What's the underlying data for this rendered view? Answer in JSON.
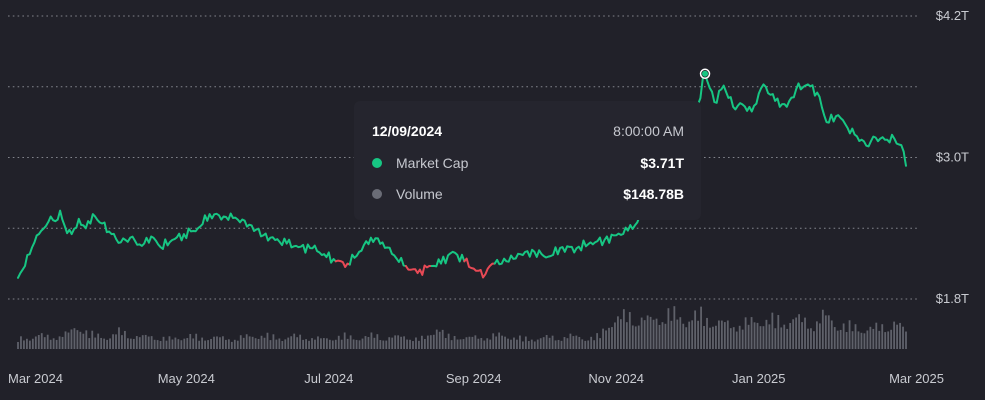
{
  "chart_data": {
    "type": "line",
    "x": [
      "2024-02-19",
      "2024-02-22",
      "2024-02-24",
      "2024-02-26",
      "2024-02-29",
      "2024-03-02",
      "2024-03-04",
      "2024-03-06",
      "2024-03-08",
      "2024-03-10",
      "2024-03-13",
      "2024-03-16",
      "2024-03-19",
      "2024-03-22",
      "2024-03-26",
      "2024-03-30",
      "2024-04-03",
      "2024-04-07",
      "2024-04-12",
      "2024-04-16",
      "2024-04-20",
      "2024-04-25",
      "2024-04-30",
      "2024-05-06",
      "2024-05-11",
      "2024-05-17",
      "2024-05-22",
      "2024-05-28",
      "2024-06-03",
      "2024-06-08",
      "2024-06-13",
      "2024-06-18",
      "2024-06-24",
      "2024-06-29",
      "2024-07-04",
      "2024-07-09",
      "2024-07-14",
      "2024-07-19",
      "2024-07-24",
      "2024-07-29",
      "2024-08-03",
      "2024-08-08",
      "2024-08-13",
      "2024-08-18",
      "2024-08-23",
      "2024-08-28",
      "2024-09-02",
      "2024-09-06",
      "2024-09-09",
      "2024-09-15",
      "2024-09-21",
      "2024-09-27",
      "2024-10-03",
      "2024-10-09",
      "2024-10-15",
      "2024-10-21",
      "2024-10-27",
      "2024-11-01",
      "2024-11-06",
      "2024-11-10",
      "2024-11-16",
      "2024-11-21",
      "2024-11-26",
      "2024-12-01",
      "2024-12-06",
      "2024-12-09",
      "2024-12-13",
      "2024-12-17",
      "2024-12-21",
      "2024-12-25",
      "2024-12-29",
      "2025-01-03",
      "2025-01-08",
      "2025-01-13",
      "2025-01-17",
      "2025-01-22",
      "2025-01-26",
      "2025-01-30",
      "2025-02-04",
      "2025-02-08",
      "2025-02-12",
      "2025-02-16",
      "2025-02-20",
      "2025-02-24",
      "2025-02-28",
      "2025-03-02",
      "2025-03-04",
      "2025-03-05"
    ],
    "series": [
      {
        "values": [
          1.98,
          2.08,
          2.18,
          2.28,
          2.38,
          2.42,
          2.5,
          2.46,
          2.55,
          2.42,
          2.35,
          2.48,
          2.4,
          2.52,
          2.44,
          2.35,
          2.28,
          2.32,
          2.25,
          2.33,
          2.24,
          2.3,
          2.35,
          2.4,
          2.52,
          2.5,
          2.49,
          2.43,
          2.34,
          2.3,
          2.27,
          2.24,
          2.23,
          2.18,
          2.12,
          2.1,
          2.2,
          2.32,
          2.28,
          2.17,
          2.08,
          2.02,
          2.08,
          2.1,
          2.2,
          2.12,
          2.04,
          2.01,
          2.1,
          2.12,
          2.18,
          2.2,
          2.16,
          2.24,
          2.23,
          2.28,
          2.3,
          2.34,
          2.38,
          2.45,
          2.62,
          2.92,
          3.22,
          3.35,
          3.45,
          3.71,
          3.47,
          3.61,
          3.43,
          3.45,
          3.39,
          3.62,
          3.48,
          3.43,
          3.58,
          3.62,
          3.55,
          3.3,
          3.36,
          3.25,
          3.18,
          3.1,
          3.17,
          3.15,
          3.16,
          3.11,
          3.05,
          2.93
        ],
        "color": "#17c683"
      }
    ],
    "down_color": "#e84955",
    "down_ranges": [
      [
        "2024-07-04",
        "2024-07-09"
      ],
      [
        "2024-08-03",
        "2024-08-13"
      ],
      [
        "2024-08-28",
        "2024-09-09"
      ]
    ],
    "volume": [
      1,
      1.1,
      1.4,
      1.2,
      1.3,
      1.6,
      2.4,
      1.5,
      1.3,
      1.2,
      1.8,
      1.4,
      1.2,
      1.3,
      1.1,
      1,
      1.2,
      1.3,
      1.1,
      1.2,
      1.1,
      1,
      1.2,
      1.3,
      1.4,
      1.2,
      1.1,
      1.3,
      1.2,
      1.1,
      1,
      1.2,
      1.3,
      1.1,
      1.2,
      1.4,
      1.1,
      1.2,
      1.3,
      1,
      1.1,
      2.3,
      1.2,
      1.3,
      1.1,
      1.2,
      1.2,
      1.4,
      1.3,
      1.1,
      1,
      1.1,
      1.2,
      1.1,
      1.3,
      1.2,
      1.1,
      1.3,
      2.8,
      3.1,
      3.4,
      3.0,
      2.9,
      3.3,
      3.6,
      3.0,
      3.2,
      3.4,
      2.8,
      2.6,
      2.4,
      2.6,
      2.7,
      3.0,
      2.9,
      2.7,
      3.1,
      2.8,
      2.5,
      3.4,
      2.7,
      2.3,
      2.2,
      2.0,
      2.1,
      2.4,
      2.6,
      1.8
    ],
    "y_ticks": [
      "$1.8T",
      "$3.0T",
      "$4.2T"
    ],
    "x_ticks": [
      "Mar 2024",
      "May 2024",
      "Jul 2024",
      "Sep 2024",
      "Nov 2024",
      "Jan 2025",
      "Mar 2025"
    ],
    "ylim": [
      1.8,
      4.2
    ],
    "grid": true,
    "title": "",
    "xlabel": "",
    "ylabel": "",
    "highlight": {
      "x": "2024-12-09",
      "date": "12/09/2024",
      "time": "8:00:00 AM",
      "rows": [
        {
          "label": "Market Cap",
          "value": "$3.71T",
          "color": "#17c683"
        },
        {
          "label": "Volume",
          "value": "$148.78B",
          "color": "#6a6c76"
        }
      ]
    }
  },
  "colors": {
    "background": "#212129",
    "grid": "#8d8f97",
    "axis_text": "#c9cbd1",
    "volume_bar": "#6a6c76"
  }
}
